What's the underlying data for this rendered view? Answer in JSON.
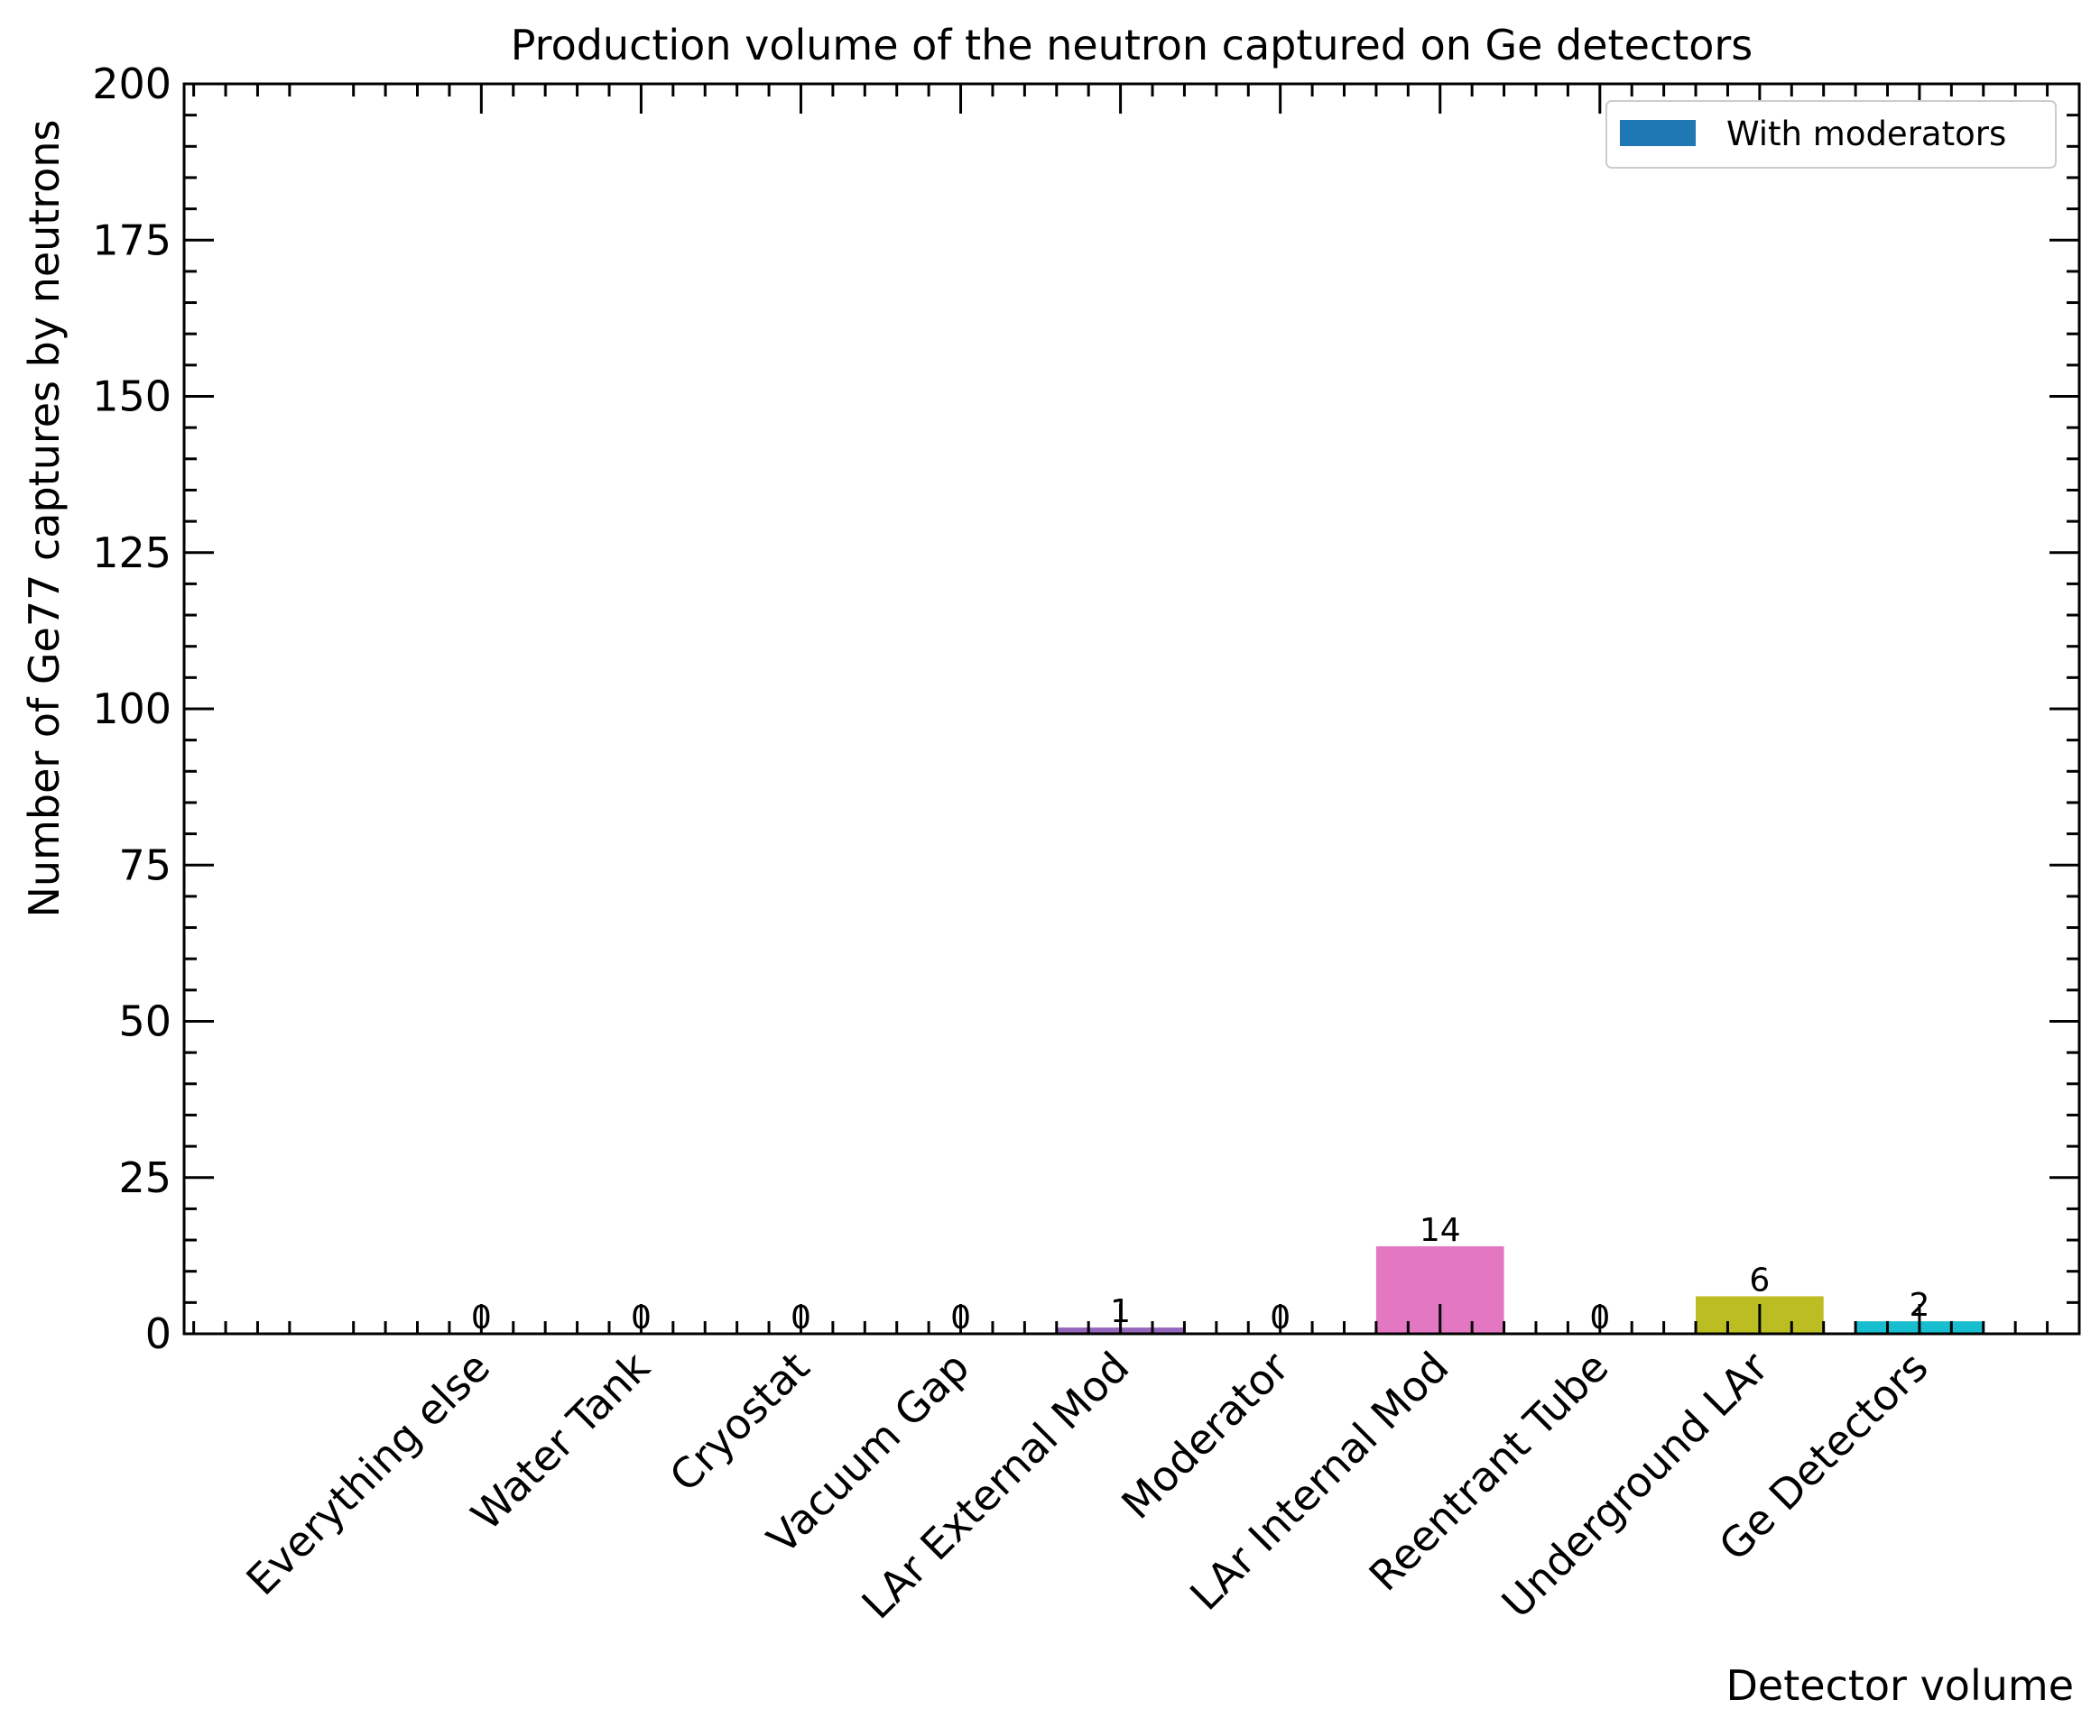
{
  "chart_data": {
    "type": "bar",
    "title": "Production volume of the neutron captured on Ge detectors",
    "xlabel": "Detector volume",
    "ylabel": "Number of Ge77 captures by neutrons",
    "categories": [
      "Everything else",
      "Water Tank",
      "Cryostat",
      "Vacuum Gap",
      "LAr External Mod",
      "Moderator",
      "LAr Internal Mod",
      "Reentrant Tube",
      "Underground LAr",
      "Ge Detectors"
    ],
    "values": [
      0,
      0,
      0,
      0,
      1,
      0,
      14,
      0,
      6,
      2
    ],
    "bar_colors": [
      "#1f77b4",
      "#ff7f0e",
      "#2ca02c",
      "#d62728",
      "#9467bd",
      "#8c564b",
      "#e377c2",
      "#7f7f7f",
      "#bcbd22",
      "#17becf"
    ],
    "series": [
      {
        "name": "With moderators",
        "values": [
          0,
          0,
          0,
          0,
          1,
          0,
          14,
          0,
          6,
          2
        ]
      }
    ],
    "ylim": [
      0,
      200
    ],
    "yticks": [
      0,
      25,
      50,
      75,
      100,
      125,
      150,
      175,
      200
    ],
    "grid": false,
    "legend": {
      "placement": "top-right",
      "entries": [
        {
          "label": "With moderators",
          "color": "#1f77b4"
        }
      ]
    }
  }
}
